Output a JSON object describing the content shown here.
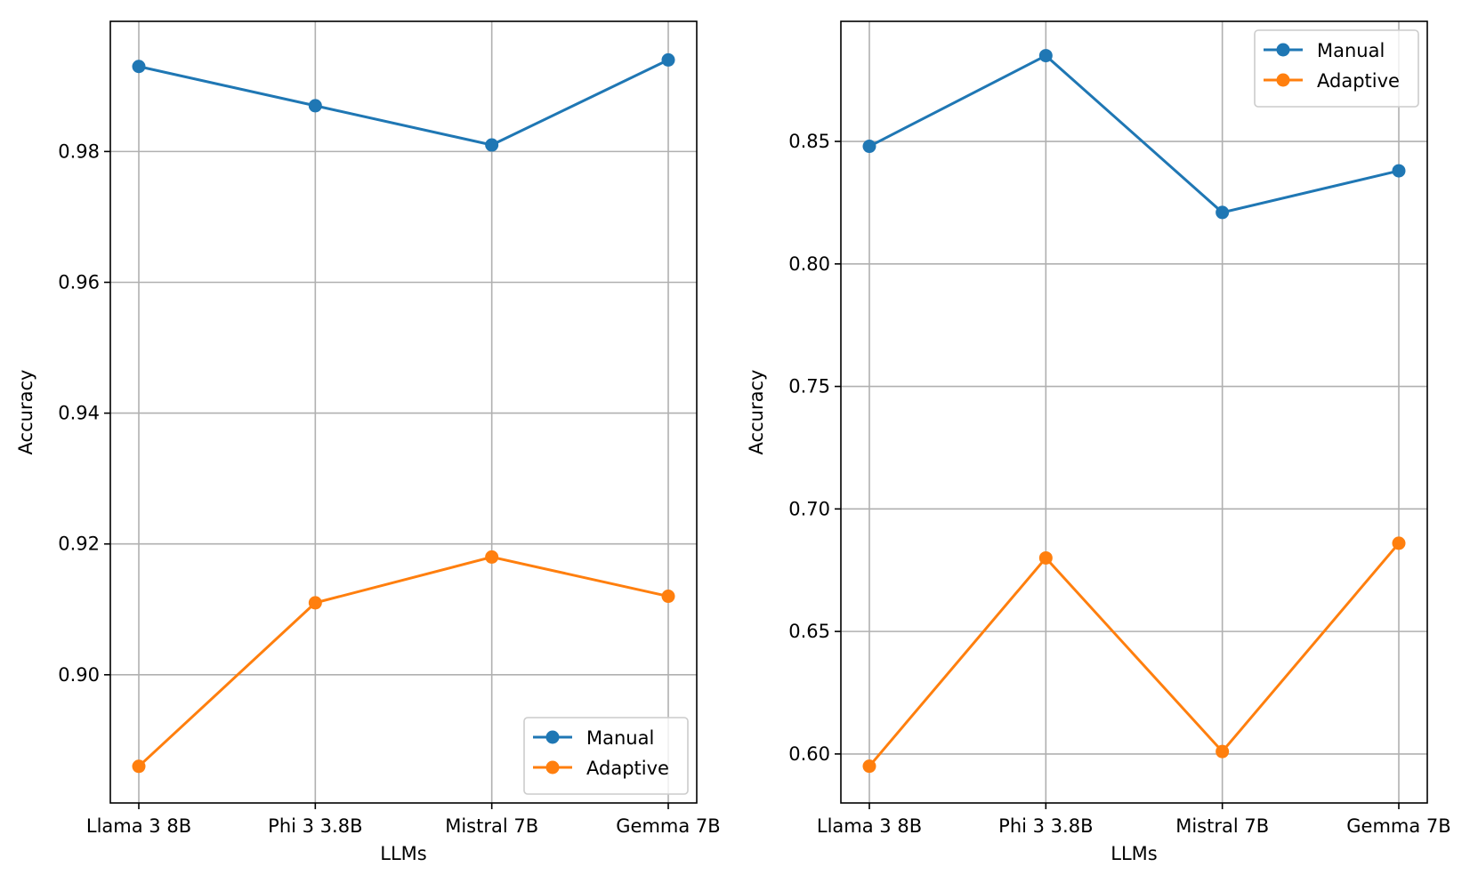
{
  "chart_data": [
    {
      "type": "line",
      "title": "",
      "xlabel": "LLMs",
      "ylabel": "Accuracy",
      "categories": [
        "Llama 3 8B",
        "Phi 3 3.8B",
        "Mistral 7B",
        "Gemma 7B"
      ],
      "ylim": [
        0.8804,
        0.9999
      ],
      "yticks": [
        0.9,
        0.92,
        0.94,
        0.96,
        0.98
      ],
      "ytick_labels": [
        "0.90",
        "0.92",
        "0.94",
        "0.96",
        "0.98"
      ],
      "grid": true,
      "legend_position": "lower-right",
      "series": [
        {
          "name": "Manual",
          "color": "#1f77b4",
          "values": [
            0.993,
            0.987,
            0.981,
            0.994
          ]
        },
        {
          "name": "Adaptive",
          "color": "#ff7f0e",
          "values": [
            0.886,
            0.911,
            0.918,
            0.912
          ]
        }
      ]
    },
    {
      "type": "line",
      "title": "",
      "xlabel": "LLMs",
      "ylabel": "Accuracy",
      "categories": [
        "Llama 3 8B",
        "Phi 3 3.8B",
        "Mistral 7B",
        "Gemma 7B"
      ],
      "ylim": [
        0.58,
        0.899
      ],
      "yticks": [
        0.6,
        0.65,
        0.7,
        0.75,
        0.8,
        0.85
      ],
      "ytick_labels": [
        "0.60",
        "0.65",
        "0.70",
        "0.75",
        "0.80",
        "0.85"
      ],
      "grid": true,
      "legend_position": "upper-right",
      "series": [
        {
          "name": "Manual",
          "color": "#1f77b4",
          "values": [
            0.848,
            0.885,
            0.821,
            0.838
          ]
        },
        {
          "name": "Adaptive",
          "color": "#ff7f0e",
          "values": [
            0.595,
            0.68,
            0.601,
            0.686
          ]
        }
      ]
    }
  ]
}
